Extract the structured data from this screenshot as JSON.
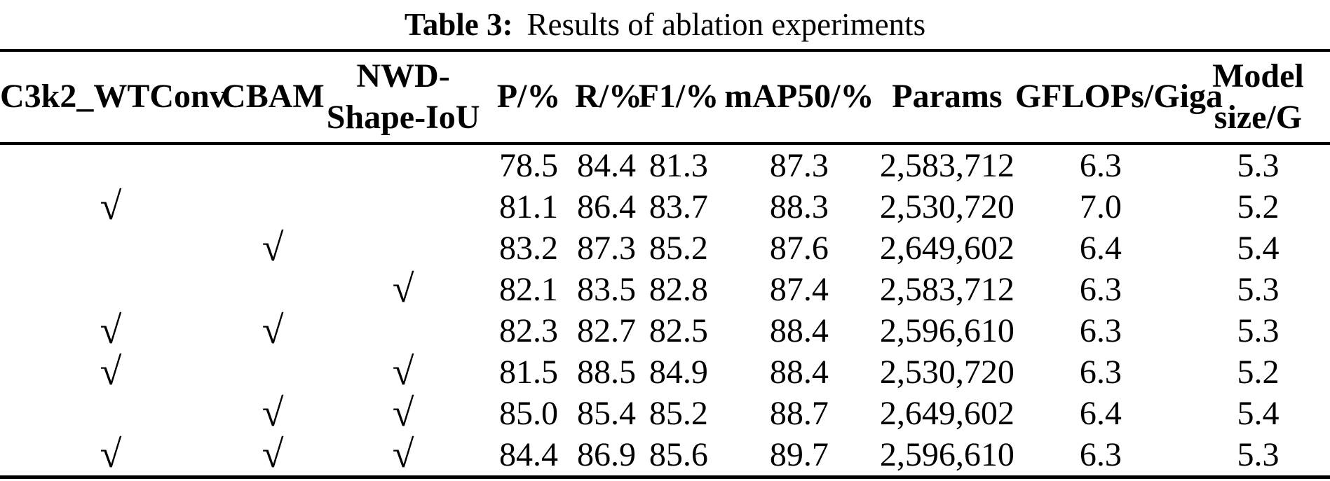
{
  "caption": {
    "label": "Table 3:",
    "text": "Results of ablation experiments"
  },
  "table": {
    "checkmark_glyph": "√",
    "columns": [
      {
        "key": "c3k2-wtconv",
        "label": "C3k2_WTConv"
      },
      {
        "key": "cbam",
        "label": "CBAM"
      },
      {
        "key": "nwd-shape-iou",
        "label": "NWD-\nShape-IoU"
      },
      {
        "key": "p-percent",
        "label": "P/%"
      },
      {
        "key": "r-percent",
        "label": "R/%"
      },
      {
        "key": "f1-percent",
        "label": "F1/%"
      },
      {
        "key": "map50-percent",
        "label": "mAP50/%"
      },
      {
        "key": "params",
        "label": "Params"
      },
      {
        "key": "gflops",
        "label": "GFLOPs/Giga"
      },
      {
        "key": "model-size",
        "label": "Model\nsize/G"
      }
    ],
    "rows": [
      [
        "",
        "",
        "",
        "78.5",
        "84.4",
        "81.3",
        "87.3",
        "2,583,712",
        "6.3",
        "5.3"
      ],
      [
        "√",
        "",
        "",
        "81.1",
        "86.4",
        "83.7",
        "88.3",
        "2,530,720",
        "7.0",
        "5.2"
      ],
      [
        "",
        "√",
        "",
        "83.2",
        "87.3",
        "85.2",
        "87.6",
        "2,649,602",
        "6.4",
        "5.4"
      ],
      [
        "",
        "",
        "√",
        "82.1",
        "83.5",
        "82.8",
        "87.4",
        "2,583,712",
        "6.3",
        "5.3"
      ],
      [
        "√",
        "√",
        "",
        "82.3",
        "82.7",
        "82.5",
        "88.4",
        "2,596,610",
        "6.3",
        "5.3"
      ],
      [
        "√",
        "",
        "√",
        "81.5",
        "88.5",
        "84.9",
        "88.4",
        "2,530,720",
        "6.3",
        "5.2"
      ],
      [
        "",
        "√",
        "√",
        "85.0",
        "85.4",
        "85.2",
        "88.7",
        "2,649,602",
        "6.4",
        "5.4"
      ],
      [
        "√",
        "√",
        "√",
        "84.4",
        "86.9",
        "85.6",
        "89.7",
        "2,596,610",
        "6.3",
        "5.3"
      ]
    ]
  }
}
